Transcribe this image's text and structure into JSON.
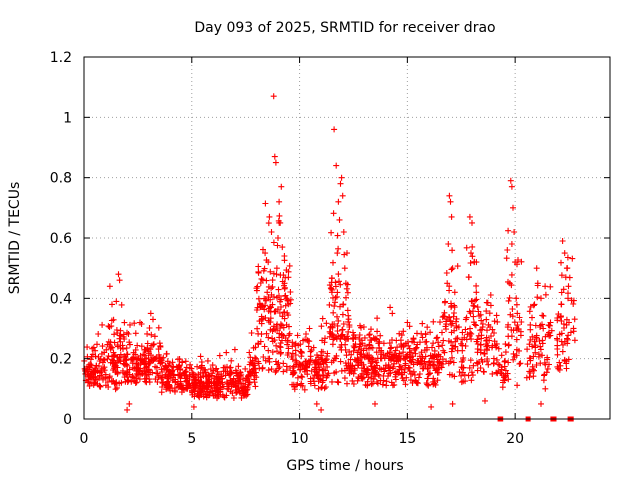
{
  "chart_data": {
    "type": "scatter",
    "title": "Day 093 of 2025, SRMTID for receiver drao",
    "xlabel": "GPS time / hours",
    "ylabel": "SRMTID / TECUs",
    "xlim": [
      0,
      24.4
    ],
    "ylim": [
      0,
      1.2
    ],
    "x_ticks": [
      0,
      5,
      10,
      15,
      20
    ],
    "x_tick_labels": [
      "0",
      "5",
      "10",
      "15",
      "20"
    ],
    "y_ticks": [
      0,
      0.2,
      0.4,
      0.6,
      0.8,
      1.0,
      1.2
    ],
    "y_tick_labels": [
      "0",
      "0.2",
      "0.4",
      "0.6",
      "0.8",
      "1",
      "1.2"
    ],
    "grid": true,
    "series_color": "#ff0000",
    "seed": 9301,
    "segments": [
      {
        "x0": 0.0,
        "x1": 0.8,
        "base": 0.14,
        "spread": 0.09,
        "density": 95
      },
      {
        "x0": 0.8,
        "x1": 1.9,
        "base": 0.16,
        "spread": 0.14,
        "density": 95
      },
      {
        "x0": 1.9,
        "x1": 3.6,
        "base": 0.16,
        "spread": 0.1,
        "density": 95
      },
      {
        "x0": 3.6,
        "x1": 5.0,
        "base": 0.12,
        "spread": 0.07,
        "density": 95
      },
      {
        "x0": 5.0,
        "x1": 7.6,
        "base": 0.1,
        "spread": 0.07,
        "density": 100
      },
      {
        "x0": 7.6,
        "x1": 8.0,
        "base": 0.15,
        "spread": 0.1,
        "density": 95
      },
      {
        "x0": 8.0,
        "x1": 9.6,
        "base": 0.28,
        "spread": 0.28,
        "density": 110
      },
      {
        "x0": 9.6,
        "x1": 11.3,
        "base": 0.15,
        "spread": 0.12,
        "density": 90
      },
      {
        "x0": 11.3,
        "x1": 12.3,
        "base": 0.22,
        "spread": 0.3,
        "density": 100
      },
      {
        "x0": 12.3,
        "x1": 16.6,
        "base": 0.16,
        "spread": 0.12,
        "density": 90
      },
      {
        "x0": 16.6,
        "x1": 17.4,
        "base": 0.24,
        "spread": 0.25,
        "density": 80
      },
      {
        "x0": 17.4,
        "x1": 17.7,
        "base": 0.15,
        "spread": 0.1,
        "density": 70
      },
      {
        "x0": 17.7,
        "x1": 18.3,
        "base": 0.22,
        "spread": 0.25,
        "density": 80
      },
      {
        "x0": 18.3,
        "x1": 19.2,
        "base": 0.2,
        "spread": 0.14,
        "density": 70
      },
      {
        "x0": 19.2,
        "x1": 19.6,
        "base": 0.14,
        "spread": 0.08,
        "density": 60
      },
      {
        "x0": 19.6,
        "x1": 20.3,
        "base": 0.22,
        "spread": 0.28,
        "density": 65
      },
      {
        "x0": 20.5,
        "x1": 21.7,
        "base": 0.2,
        "spread": 0.18,
        "density": 60
      },
      {
        "x0": 21.9,
        "x1": 22.8,
        "base": 0.24,
        "spread": 0.22,
        "density": 60
      }
    ],
    "peaks": [
      [
        1.6,
        0.48
      ],
      [
        1.65,
        0.46
      ],
      [
        1.2,
        0.44
      ],
      [
        1.3,
        0.38
      ],
      [
        1.5,
        0.39
      ],
      [
        3.1,
        0.35
      ],
      [
        3.2,
        0.33
      ],
      [
        2.6,
        0.32
      ],
      [
        6.3,
        0.21
      ],
      [
        6.6,
        0.22
      ],
      [
        7.0,
        0.23
      ],
      [
        8.4,
        0.55
      ],
      [
        8.6,
        0.67
      ],
      [
        8.8,
        1.07
      ],
      [
        8.85,
        0.87
      ],
      [
        8.9,
        0.85
      ],
      [
        9.05,
        0.72
      ],
      [
        9.15,
        0.77
      ],
      [
        9.1,
        0.65
      ],
      [
        9.0,
        0.6
      ],
      [
        9.2,
        0.57
      ],
      [
        8.7,
        0.62
      ],
      [
        9.3,
        0.45
      ],
      [
        9.4,
        0.4
      ],
      [
        8.5,
        0.42
      ],
      [
        8.95,
        0.5
      ],
      [
        11.6,
        0.96
      ],
      [
        11.7,
        0.84
      ],
      [
        11.8,
        0.72
      ],
      [
        11.9,
        0.78
      ],
      [
        11.95,
        0.8
      ],
      [
        12.0,
        0.74
      ],
      [
        11.85,
        0.66
      ],
      [
        12.05,
        0.62
      ],
      [
        12.1,
        0.5
      ],
      [
        11.75,
        0.55
      ],
      [
        12.2,
        0.55
      ],
      [
        11.5,
        0.42
      ],
      [
        12.15,
        0.45
      ],
      [
        14.2,
        0.37
      ],
      [
        14.3,
        0.35
      ],
      [
        15.0,
        0.32
      ],
      [
        16.95,
        0.74
      ],
      [
        17.0,
        0.72
      ],
      [
        16.9,
        0.58
      ],
      [
        17.05,
        0.67
      ],
      [
        17.1,
        0.5
      ],
      [
        17.2,
        0.42
      ],
      [
        16.85,
        0.45
      ],
      [
        17.9,
        0.67
      ],
      [
        18.0,
        0.65
      ],
      [
        17.95,
        0.55
      ],
      [
        18.1,
        0.52
      ],
      [
        18.2,
        0.42
      ],
      [
        17.85,
        0.47
      ],
      [
        19.8,
        0.79
      ],
      [
        19.85,
        0.77
      ],
      [
        19.9,
        0.7
      ],
      [
        19.95,
        0.62
      ],
      [
        19.85,
        0.58
      ],
      [
        20.0,
        0.52
      ],
      [
        19.75,
        0.45
      ],
      [
        20.05,
        0.4
      ],
      [
        20.1,
        0.35
      ],
      [
        21.0,
        0.5
      ],
      [
        21.05,
        0.45
      ],
      [
        21.2,
        0.4
      ],
      [
        20.9,
        0.38
      ],
      [
        21.3,
        0.3
      ],
      [
        22.2,
        0.59
      ],
      [
        22.3,
        0.55
      ],
      [
        22.4,
        0.5
      ],
      [
        22.35,
        0.47
      ],
      [
        22.25,
        0.43
      ],
      [
        22.15,
        0.38
      ],
      [
        22.45,
        0.4
      ],
      [
        22.5,
        0.32
      ]
    ],
    "dips": [
      [
        2.0,
        0.03
      ],
      [
        2.1,
        0.05
      ],
      [
        5.1,
        0.04
      ],
      [
        10.8,
        0.05
      ],
      [
        11.0,
        0.03
      ],
      [
        13.5,
        0.05
      ],
      [
        16.1,
        0.04
      ],
      [
        17.1,
        0.05
      ],
      [
        18.6,
        0.06
      ],
      [
        21.2,
        0.05
      ],
      [
        21.4,
        0.1
      ]
    ],
    "zero_markers": [
      19.3,
      19.33,
      20.6,
      21.75,
      21.8,
      22.55,
      22.6
    ]
  }
}
